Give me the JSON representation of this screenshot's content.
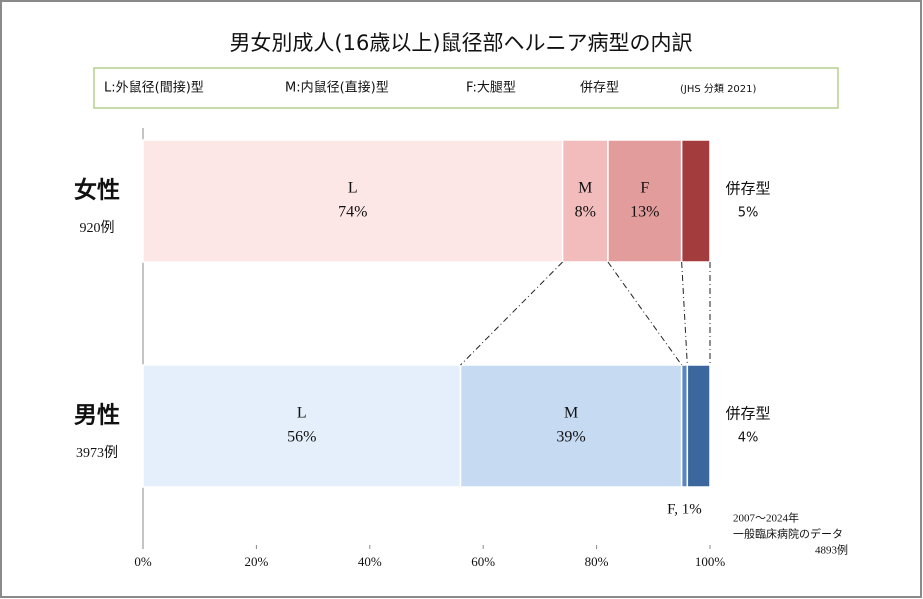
{
  "chart_data": {
    "type": "stacked-bar-horizontal-percent",
    "title": "男女別成人(16歳以上)鼠径部ヘルニア病型の内訳",
    "legend_note": "(JHS 分類 2021)",
    "categories": [
      "女性",
      "男性"
    ],
    "category_counts": [
      "920例",
      "3973例"
    ],
    "series": [
      {
        "name": "L:外鼠径(間接)型",
        "segment_labels": [
          "L",
          "L"
        ],
        "colors": [
          "#fde6e6",
          "#e4effb"
        ],
        "values": [
          74,
          56
        ],
        "value_labels": [
          "74%",
          "56%"
        ]
      },
      {
        "name": "M:内鼠径(直接)型",
        "segment_labels": [
          "M",
          "M"
        ],
        "colors": [
          "#f2bcbc",
          "#c6daf1"
        ],
        "values": [
          8,
          39
        ],
        "value_labels": [
          "8%",
          "39%"
        ]
      },
      {
        "name": "F:大腿型",
        "segment_labels": [
          "F",
          null
        ],
        "colors": [
          "#e39c9c",
          "#5b86c2"
        ],
        "values": [
          13,
          1
        ],
        "value_labels": [
          "13%",
          "F, 1%"
        ]
      },
      {
        "name": "併存型",
        "segment_labels": [
          "併存型",
          "併存型"
        ],
        "colors": [
          "#a33c3c",
          "#3b679e"
        ],
        "values": [
          5,
          4
        ],
        "value_labels": [
          "5%",
          "4%"
        ]
      }
    ],
    "xlim": [
      0,
      100
    ],
    "xticks": [
      {
        "value": 0,
        "label": "0%"
      },
      {
        "value": 20,
        "label": "20%"
      },
      {
        "value": 40,
        "label": "40%"
      },
      {
        "value": 60,
        "label": "60%"
      },
      {
        "value": 80,
        "label": "80%"
      },
      {
        "value": 100,
        "label": "100%"
      }
    ],
    "note": [
      "2007〜2024年",
      "一般臨床病院のデータ",
      "4893例"
    ]
  }
}
